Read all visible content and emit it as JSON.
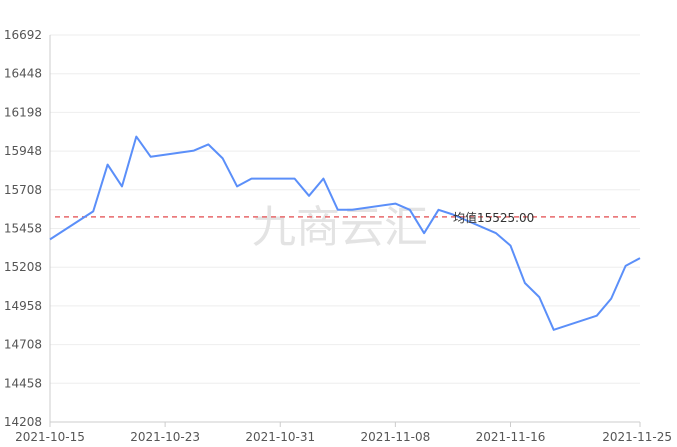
{
  "chart_data": {
    "type": "line",
    "x": [
      "2021-10-15",
      "2021-10-18",
      "2021-10-19",
      "2021-10-20",
      "2021-10-21",
      "2021-10-22",
      "2021-10-25",
      "2021-10-26",
      "2021-10-27",
      "2021-10-28",
      "2021-10-29",
      "2021-11-01",
      "2021-11-02",
      "2021-11-03",
      "2021-11-04",
      "2021-11-05",
      "2021-11-08",
      "2021-11-09",
      "2021-11-10",
      "2021-11-11",
      "2021-11-12",
      "2021-11-15",
      "2021-11-16",
      "2021-11-17",
      "2021-11-18",
      "2021-11-19",
      "2021-11-22",
      "2021-11-23",
      "2021-11-24",
      "2021-11-25"
    ],
    "series": [
      {
        "values": [
          15380,
          15560,
          15860,
          15720,
          16040,
          15910,
          15950,
          15990,
          15900,
          15720,
          15770,
          15770,
          15660,
          15770,
          15570,
          15570,
          15610,
          15570,
          15420,
          15570,
          15540,
          15420,
          15340,
          15100,
          15010,
          14800,
          14890,
          15000,
          15210,
          15260
        ]
      }
    ],
    "yticks": [
      "16692",
      "16448",
      "16198",
      "15948",
      "15708",
      "15458",
      "15208",
      "14958",
      "14708",
      "14458",
      "14208"
    ],
    "xticks": [
      "2021-10-15",
      "2021-10-23",
      "2021-10-31",
      "2021-11-08",
      "2021-11-16",
      "2021-11-25"
    ],
    "ylim": [
      14208,
      16692
    ],
    "average": 15525,
    "average_label": "均值15525.00",
    "watermark": "九商云汇",
    "line_color": "#5b8ff9",
    "average_color": "#e8686a",
    "grid": true
  }
}
